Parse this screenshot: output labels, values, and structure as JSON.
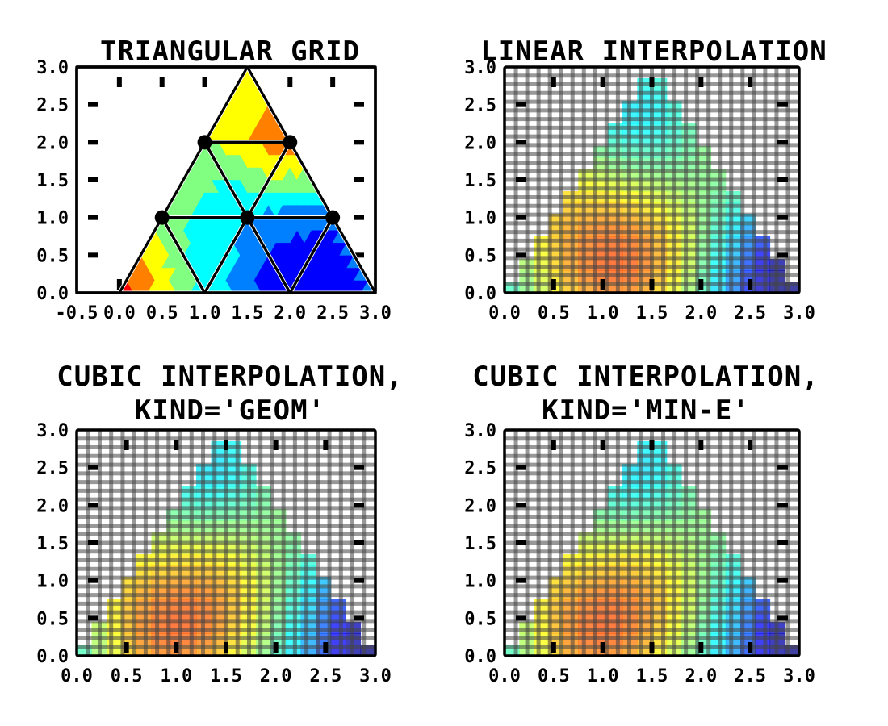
{
  "chart_data": [
    {
      "type": "tripcolor",
      "title": "TRIANGULAR GRID",
      "xlabel": "",
      "ylabel": "",
      "xlim": [
        -0.5,
        3.0
      ],
      "ylim": [
        0.0,
        3.0
      ],
      "x_ticks": [
        "-0.5",
        "0.0",
        "0.5",
        "1.0",
        "1.5",
        "2.0",
        "2.5",
        "3.0"
      ],
      "y_ticks": [
        "0.0",
        "0.5",
        "1.0",
        "1.5",
        "2.0",
        "2.5",
        "3.0"
      ],
      "nodes": [
        [
          0,
          0
        ],
        [
          1,
          0
        ],
        [
          2,
          0
        ],
        [
          3,
          0
        ],
        [
          0.5,
          1
        ],
        [
          1.5,
          1
        ],
        [
          2.5,
          1
        ],
        [
          1,
          2
        ],
        [
          2,
          2
        ],
        [
          1.5,
          3
        ]
      ],
      "triangles": [
        [
          0,
          1,
          4
        ],
        [
          1,
          2,
          5
        ],
        [
          2,
          3,
          6
        ],
        [
          1,
          5,
          4
        ],
        [
          2,
          6,
          5
        ],
        [
          4,
          5,
          7
        ],
        [
          5,
          6,
          8
        ],
        [
          5,
          8,
          7
        ],
        [
          7,
          8,
          9
        ]
      ],
      "node_values": [
        0.9,
        0.4,
        0.05,
        0.2,
        0.5,
        0.3,
        0.2,
        0.55,
        0.8,
        0.6
      ],
      "grid": false
    },
    {
      "type": "heatmap",
      "title": "LINEAR INTERPOLATION",
      "xlabel": "",
      "ylabel": "",
      "xlim": [
        0.0,
        3.0
      ],
      "ylim": [
        0.0,
        3.0
      ],
      "x_ticks": [
        "0.0",
        "0.5",
        "1.0",
        "1.5",
        "2.0",
        "2.5",
        "3.0"
      ],
      "y_ticks": [
        "0.0",
        "0.5",
        "1.0",
        "1.5",
        "2.0",
        "2.5",
        "3.0"
      ],
      "grid": true
    },
    {
      "type": "heatmap",
      "title": "CUBIC INTERPOLATION,",
      "subtitle": "KIND='GEOM'",
      "xlabel": "",
      "ylabel": "",
      "xlim": [
        0.0,
        3.0
      ],
      "ylim": [
        0.0,
        3.0
      ],
      "x_ticks": [
        "0.0",
        "0.5",
        "1.0",
        "1.5",
        "2.0",
        "2.5",
        "3.0"
      ],
      "y_ticks": [
        "0.0",
        "0.5",
        "1.0",
        "1.5",
        "2.0",
        "2.5",
        "3.0"
      ],
      "grid": true
    },
    {
      "type": "heatmap",
      "title": "CUBIC INTERPOLATION,",
      "subtitle": "KIND='MIN-E'",
      "xlabel": "",
      "ylabel": "",
      "xlim": [
        0.0,
        3.0
      ],
      "ylim": [
        0.0,
        3.0
      ],
      "x_ticks": [
        "0.0",
        "0.5",
        "1.0",
        "1.5",
        "2.0",
        "2.5",
        "3.0"
      ],
      "y_ticks": [
        "0.0",
        "0.5",
        "1.0",
        "1.5",
        "2.0",
        "2.5",
        "3.0"
      ],
      "grid": true
    }
  ],
  "colormap": "jet"
}
